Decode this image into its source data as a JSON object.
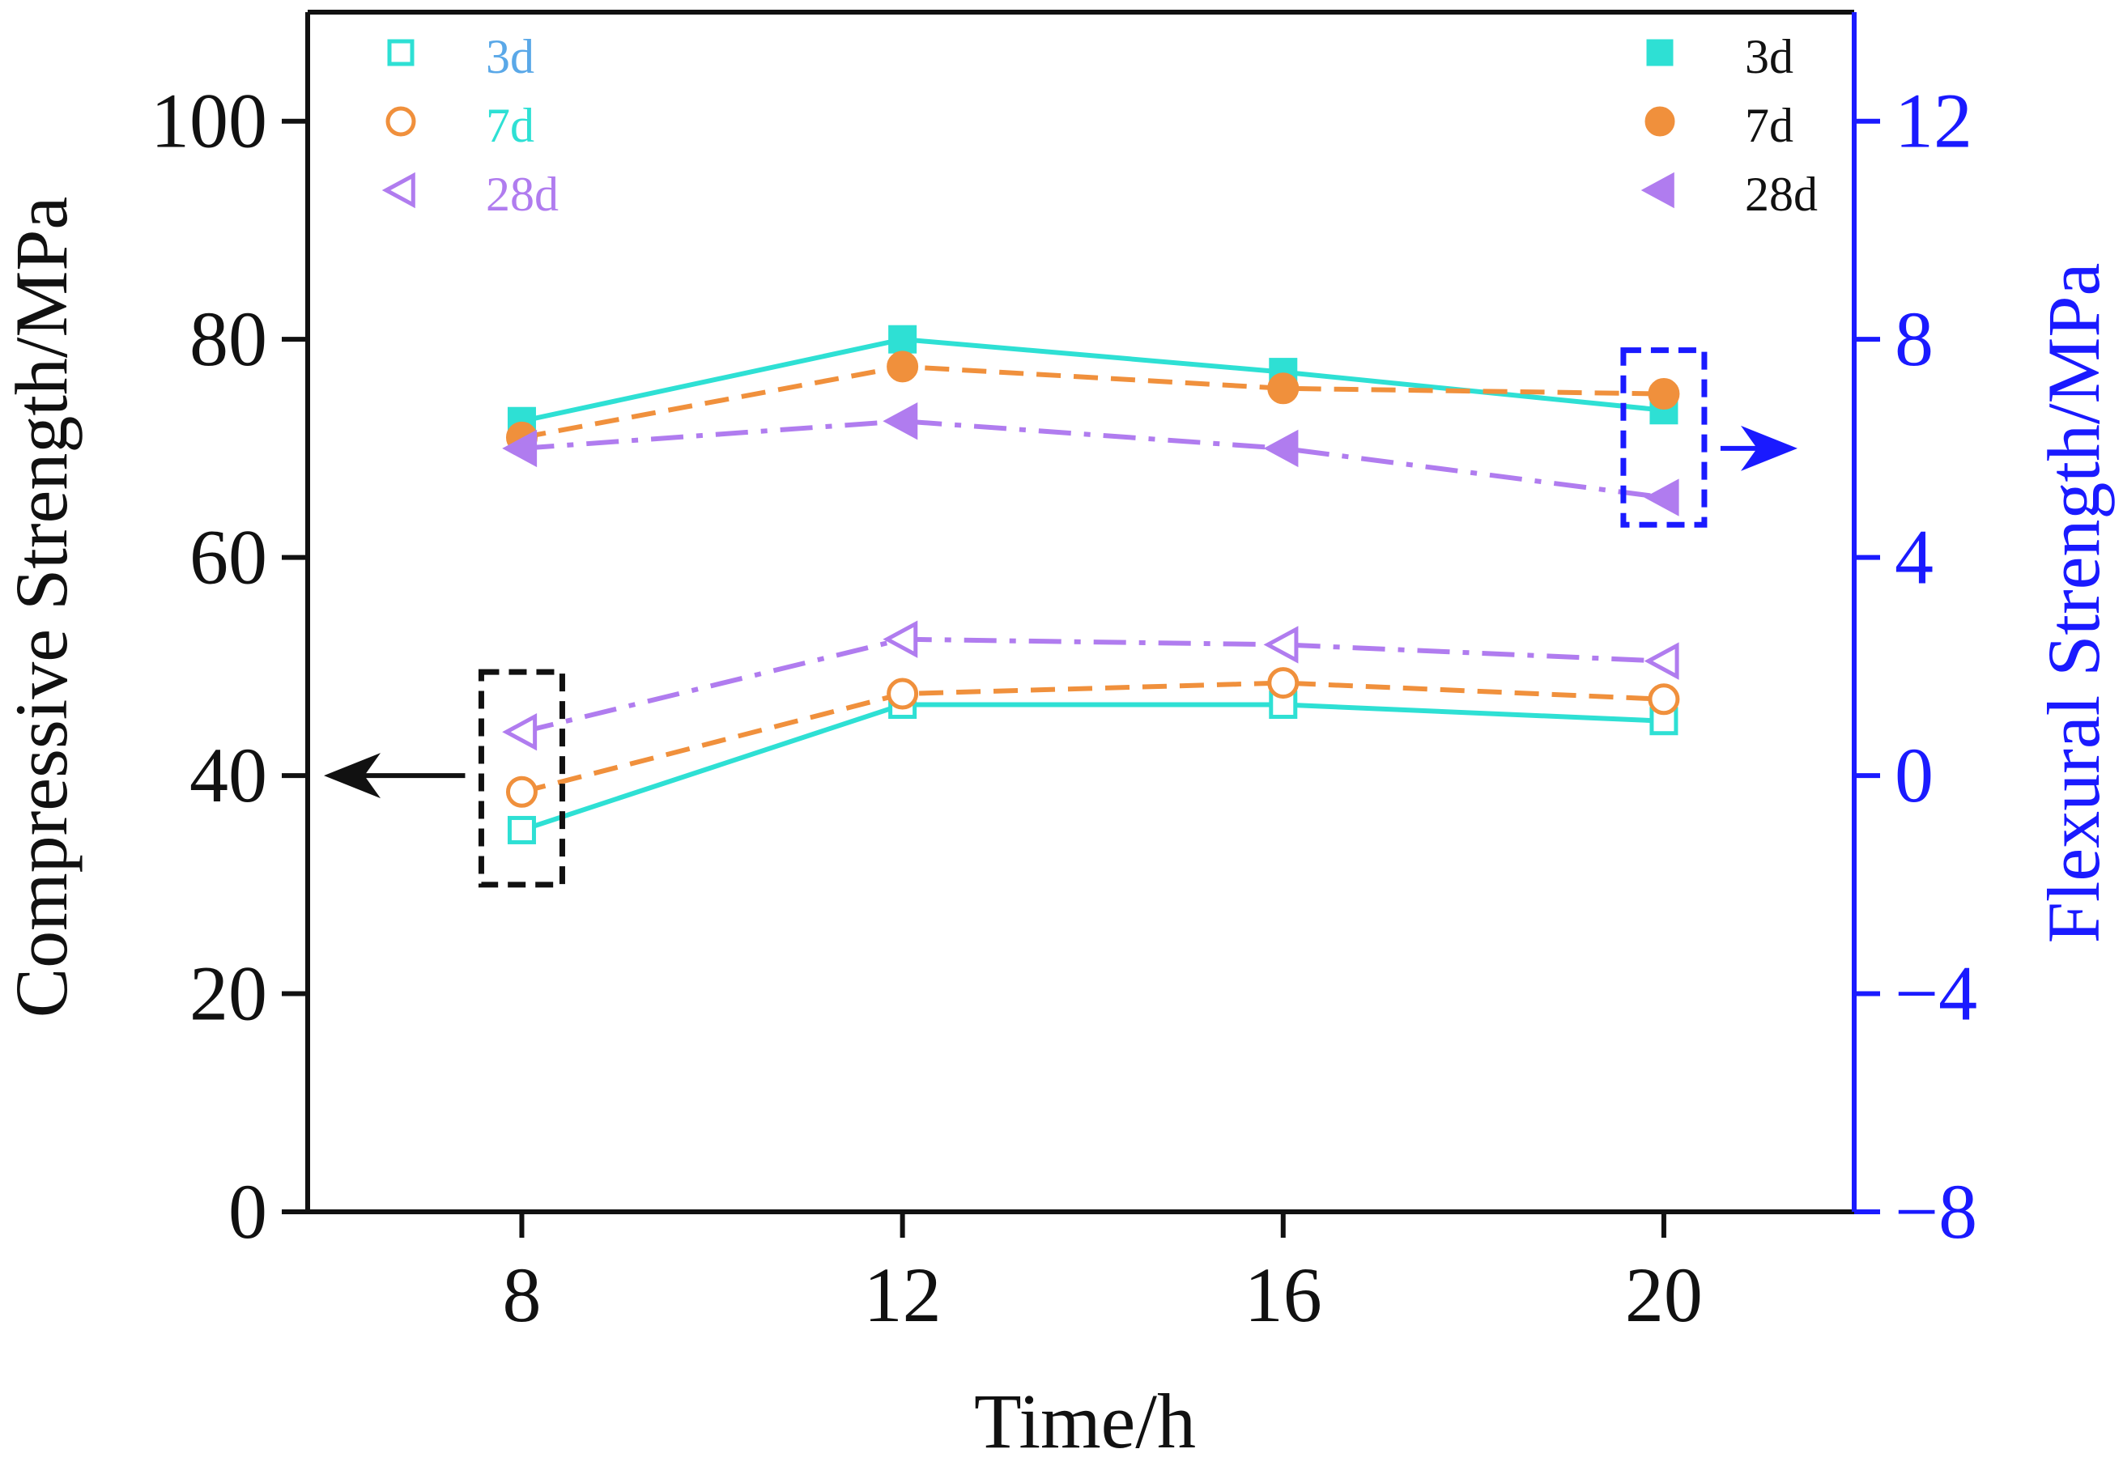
{
  "chart_data": {
    "type": "line",
    "x_axis": {
      "label": "Time/h",
      "ticks": [
        8,
        12,
        16,
        20
      ],
      "range": [
        5.75,
        22
      ]
    },
    "y_left": {
      "label": "Compressive Strength/MPa",
      "ticks": [
        0,
        20,
        40,
        60,
        80,
        100
      ],
      "range": [
        0,
        110
      ]
    },
    "y_right": {
      "label": "Flexural Strength/MPa",
      "tick_labels": [
        "−8",
        "−4",
        "0",
        "4",
        "8",
        "12"
      ],
      "ticks": [
        -8,
        -4,
        0,
        4,
        8,
        12
      ],
      "range": [
        -8,
        14
      ]
    },
    "x": [
      8,
      12,
      16,
      20
    ],
    "compressive_series": [
      {
        "name": "3d",
        "values": [
          35,
          46.5,
          46.5,
          45
        ],
        "color": "#2ee0d4",
        "marker": "square",
        "dash": "solid"
      },
      {
        "name": "7d",
        "values": [
          38.5,
          47.5,
          48.5,
          47
        ],
        "color": "#f0903c",
        "marker": "circle",
        "dash": "dashed"
      },
      {
        "name": "28d",
        "values": [
          44,
          52.5,
          52,
          50.5
        ],
        "color": "#b07cef",
        "marker": "triangle",
        "dash": "dashdot"
      }
    ],
    "flexural_series": [
      {
        "name": "3d",
        "values": [
          6.5,
          8.0,
          7.4,
          6.7
        ],
        "color": "#2ee0d4",
        "marker": "square",
        "dash": "solid"
      },
      {
        "name": "7d",
        "values": [
          6.2,
          7.5,
          7.1,
          7.0
        ],
        "color": "#f0903c",
        "marker": "circle",
        "dash": "dashed"
      },
      {
        "name": "28d",
        "values": [
          6.0,
          6.5,
          6.0,
          5.1
        ],
        "color": "#b07cef",
        "marker": "triangle",
        "dash": "dashdot"
      }
    ],
    "legend_left": {
      "position": "top-left",
      "entries": [
        {
          "label": "3d",
          "marker": "square",
          "marker_color": "#2ee0d4",
          "text_color": "#5aa8e8"
        },
        {
          "label": "7d",
          "marker": "circle",
          "marker_color": "#f0903c",
          "text_color": "#2ee0d4"
        },
        {
          "label": "28d",
          "marker": "triangle",
          "marker_color": "#b07cef",
          "text_color": "#b07cef"
        }
      ]
    },
    "legend_right": {
      "position": "top-right",
      "entries": [
        {
          "label": "3d",
          "marker": "square",
          "marker_color": "#2ee0d4",
          "text_color": "#111111"
        },
        {
          "label": "7d",
          "marker": "circle",
          "marker_color": "#f0903c",
          "text_color": "#111111"
        },
        {
          "label": "28d",
          "marker": "triangle",
          "marker_color": "#b07cef",
          "text_color": "#111111"
        }
      ]
    },
    "annotations": [
      {
        "name": "compressive-box",
        "axis": "left",
        "x": 8,
        "y_range": [
          30,
          49.5
        ],
        "color": "#111111",
        "arrow": "left"
      },
      {
        "name": "flexural-box",
        "axis": "right",
        "x": 20,
        "y_range": [
          4.6,
          7.8
        ],
        "color": "#1a1aff",
        "arrow": "right"
      }
    ],
    "colors": {
      "left_axis": "#111111",
      "right_axis": "#1a1aff"
    }
  }
}
